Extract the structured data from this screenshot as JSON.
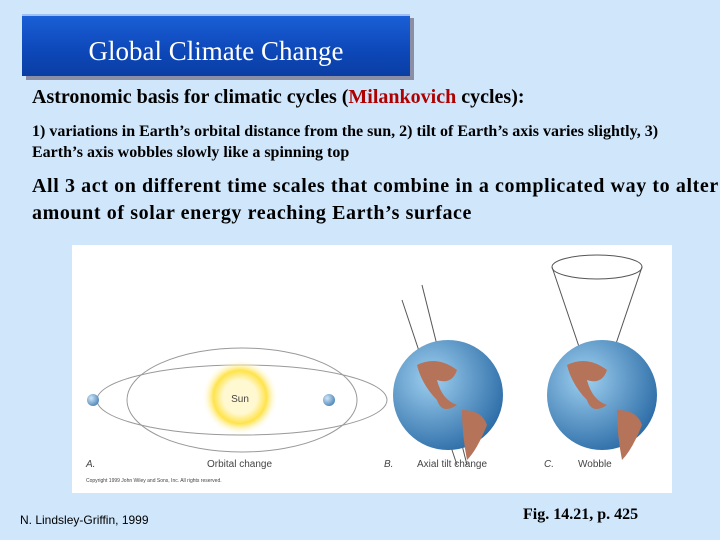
{
  "title": "Global Climate Change",
  "heading": {
    "before": "Astronomic basis for climatic cycles (",
    "highlight": "Milankovich",
    "after": " cycles):"
  },
  "details": "1) variations in Earth’s orbital distance from the sun, 2) tilt of Earth’s axis varies slightly, 3) Earth’s axis wobbles slowly like a spinning top",
  "summary": "All 3 act on different time scales that combine in a complicated way to alter amount of solar energy reaching Earth’s surface",
  "figure": {
    "sun_label": "Sun",
    "panels": [
      {
        "letter": "A.",
        "caption": "Orbital change"
      },
      {
        "letter": "B.",
        "caption": "Axial tilt change"
      },
      {
        "letter": "C.",
        "caption": "Wobble"
      }
    ],
    "copyright": "Copyright 1999 John Wiley and Sons, Inc. All rights reserved."
  },
  "footer": {
    "author": "N. Lindsley-Griffin, 1999",
    "reference": "Fig. 14.21, p. 425"
  }
}
